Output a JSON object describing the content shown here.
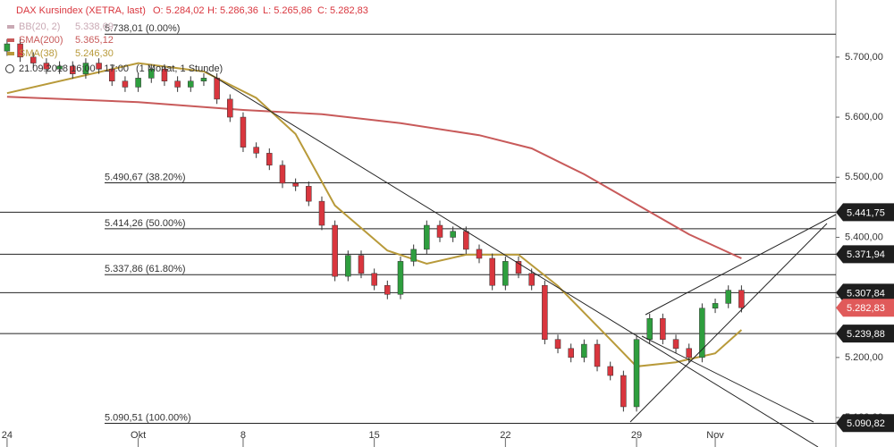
{
  "chart_data": {
    "type": "candlestick",
    "title": "DAX Kursindex (XETRA, last)",
    "ohlc_labels": [
      "O: 5.284,02",
      "H: 5.286,36",
      "L: 5.265,86",
      "C: 5.282,83"
    ],
    "legend_rows": [
      {
        "name": "BB(20, 2)",
        "value": "5.338,69",
        "color": "#c9a9b4"
      },
      {
        "name": "SMA(200)",
        "value": "5.365,12",
        "color": "#c85a5a"
      },
      {
        "name": "SMA(38)",
        "value": "5.246,30",
        "color": "#b89a3a"
      }
    ],
    "period": "21.09.2018 16:00 - 17:00",
    "interval": "(1 Monat, 1 Stunde)",
    "up_color": "#2e9e3e",
    "down_color": "#d9363e",
    "x": [
      0,
      0.5,
      1,
      1.5,
      2,
      2.5,
      3,
      3.5,
      4,
      4.5,
      5,
      5.5,
      6,
      6.5,
      7,
      7.5,
      8,
      8.5,
      9,
      9.5,
      10,
      10.5,
      11,
      11.5,
      12,
      12.5,
      13,
      13.5,
      14,
      14.5,
      15,
      15.5,
      16,
      16.5,
      17,
      17.5,
      18,
      18.5,
      19,
      19.5,
      20,
      20.5,
      21,
      21.5,
      22,
      22.5,
      23,
      23.5,
      24,
      24.5,
      25,
      25.5,
      26,
      26.5,
      27,
      27.5,
      28
    ],
    "open": [
      5710,
      5722,
      5700,
      5690,
      5680,
      5685,
      5672,
      5690,
      5680,
      5660,
      5650,
      5665,
      5680,
      5660,
      5650,
      5660,
      5665,
      5630,
      5600,
      5550,
      5540,
      5520,
      5490,
      5485,
      5460,
      5420,
      5335,
      5370,
      5340,
      5320,
      5305,
      5360,
      5380,
      5420,
      5400,
      5410,
      5380,
      5365,
      5320,
      5360,
      5340,
      5320,
      5230,
      5215,
      5200,
      5222,
      5185,
      5170,
      5118,
      5230,
      5265,
      5230,
      5215,
      5200,
      5282,
      5290,
      5312
    ],
    "high": [
      5730,
      5730,
      5708,
      5698,
      5693,
      5693,
      5698,
      5698,
      5688,
      5668,
      5673,
      5688,
      5688,
      5668,
      5668,
      5673,
      5673,
      5638,
      5608,
      5558,
      5548,
      5528,
      5498,
      5493,
      5468,
      5428,
      5378,
      5378,
      5348,
      5328,
      5368,
      5388,
      5428,
      5428,
      5418,
      5418,
      5388,
      5373,
      5368,
      5368,
      5348,
      5328,
      5238,
      5223,
      5230,
      5230,
      5193,
      5178,
      5238,
      5273,
      5273,
      5238,
      5223,
      5290,
      5298,
      5320,
      5320
    ],
    "low": [
      5702,
      5692,
      5682,
      5672,
      5672,
      5664,
      5664,
      5672,
      5652,
      5642,
      5642,
      5657,
      5652,
      5642,
      5642,
      5652,
      5622,
      5592,
      5542,
      5532,
      5512,
      5482,
      5477,
      5452,
      5412,
      5327,
      5327,
      5332,
      5312,
      5297,
      5297,
      5352,
      5372,
      5392,
      5392,
      5372,
      5357,
      5312,
      5312,
      5332,
      5312,
      5222,
      5207,
      5192,
      5192,
      5177,
      5162,
      5110,
      5110,
      5222,
      5222,
      5207,
      5192,
      5192,
      5274,
      5282,
      5275
    ],
    "close": [
      5722,
      5700,
      5690,
      5680,
      5685,
      5672,
      5690,
      5680,
      5660,
      5650,
      5665,
      5680,
      5660,
      5650,
      5660,
      5665,
      5630,
      5600,
      5550,
      5540,
      5520,
      5490,
      5485,
      5460,
      5420,
      5335,
      5370,
      5340,
      5320,
      5305,
      5360,
      5380,
      5420,
      5400,
      5410,
      5380,
      5365,
      5320,
      5360,
      5340,
      5320,
      5230,
      5215,
      5200,
      5222,
      5185,
      5170,
      5118,
      5230,
      5265,
      5230,
      5215,
      5200,
      5282,
      5290,
      5312,
      5282.83
    ],
    "series": [
      {
        "name": "SMA(200)",
        "color": "#c85a5a",
        "x": [
          0,
          5,
          9,
          12,
          15,
          18,
          20,
          22,
          24,
          26,
          28
        ],
        "values": [
          5634,
          5625,
          5612,
          5605,
          5590,
          5570,
          5548,
          5505,
          5455,
          5405,
          5365
        ]
      },
      {
        "name": "SMA(38)",
        "color": "#b89a3a",
        "x": [
          0,
          5,
          7.5,
          9.5,
          11,
          12.5,
          14.5,
          16,
          17.5,
          19.5,
          21,
          23,
          24,
          25.5,
          27,
          28
        ],
        "values": [
          5640,
          5690,
          5676,
          5632,
          5572,
          5453,
          5378,
          5356,
          5371,
          5371,
          5319,
          5230,
          5185,
          5192,
          5207,
          5246
        ]
      }
    ],
    "levels": [
      {
        "value": 5738.01,
        "label": "5.738,01 (0.00%)"
      },
      {
        "value": 5490.67,
        "label": "5.490,67 (38.20%)"
      },
      {
        "value": 5414.26,
        "label": "5.414,26 (50.00%)"
      },
      {
        "value": 5337.86,
        "label": "5.337,86 (61.80%)"
      },
      {
        "value": 5090.51,
        "label": "5.090,51 (100.00%)"
      }
    ],
    "markers": [
      {
        "value": 5441.75,
        "label": "5.441,75",
        "color": "#1e1e1e",
        "line": true
      },
      {
        "value": 5371.94,
        "label": "5.371,94",
        "color": "#1e1e1e",
        "line": true
      },
      {
        "value": 5307.84,
        "label": "5.307,84",
        "color": "#1e1e1e",
        "line": true
      },
      {
        "value": 5282.83,
        "label": "5.282,83",
        "color": "#e05a5a",
        "line": false
      },
      {
        "value": 5239.88,
        "label": "5.239,88",
        "color": "#1e1e1e",
        "line": true
      },
      {
        "value": 5090.82,
        "label": "5.090,82",
        "color": "#1e1e1e",
        "line": false
      }
    ],
    "xlim": [
      -0.27,
      31.6
    ],
    "xticks": [
      {
        "value": 0,
        "label": "24"
      },
      {
        "value": 5,
        "label": "Okt"
      },
      {
        "value": 9,
        "label": "8"
      },
      {
        "value": 14,
        "label": "15"
      },
      {
        "value": 19,
        "label": "22"
      },
      {
        "value": 24,
        "label": "29"
      },
      {
        "value": 27,
        "label": "Nov"
      }
    ],
    "ylim": [
      5051,
      5795
    ],
    "yticks": [
      {
        "value": 5100,
        "label": "5.100,00"
      },
      {
        "value": 5200,
        "label": "5.200,00"
      },
      {
        "value": 5300,
        "label": "5.300,00"
      },
      {
        "value": 5400,
        "label": "5.400,00"
      },
      {
        "value": 5500,
        "label": "5.500,00"
      },
      {
        "value": 5600,
        "label": "5.600,00"
      },
      {
        "value": 5700,
        "label": "5.700,00"
      }
    ]
  }
}
